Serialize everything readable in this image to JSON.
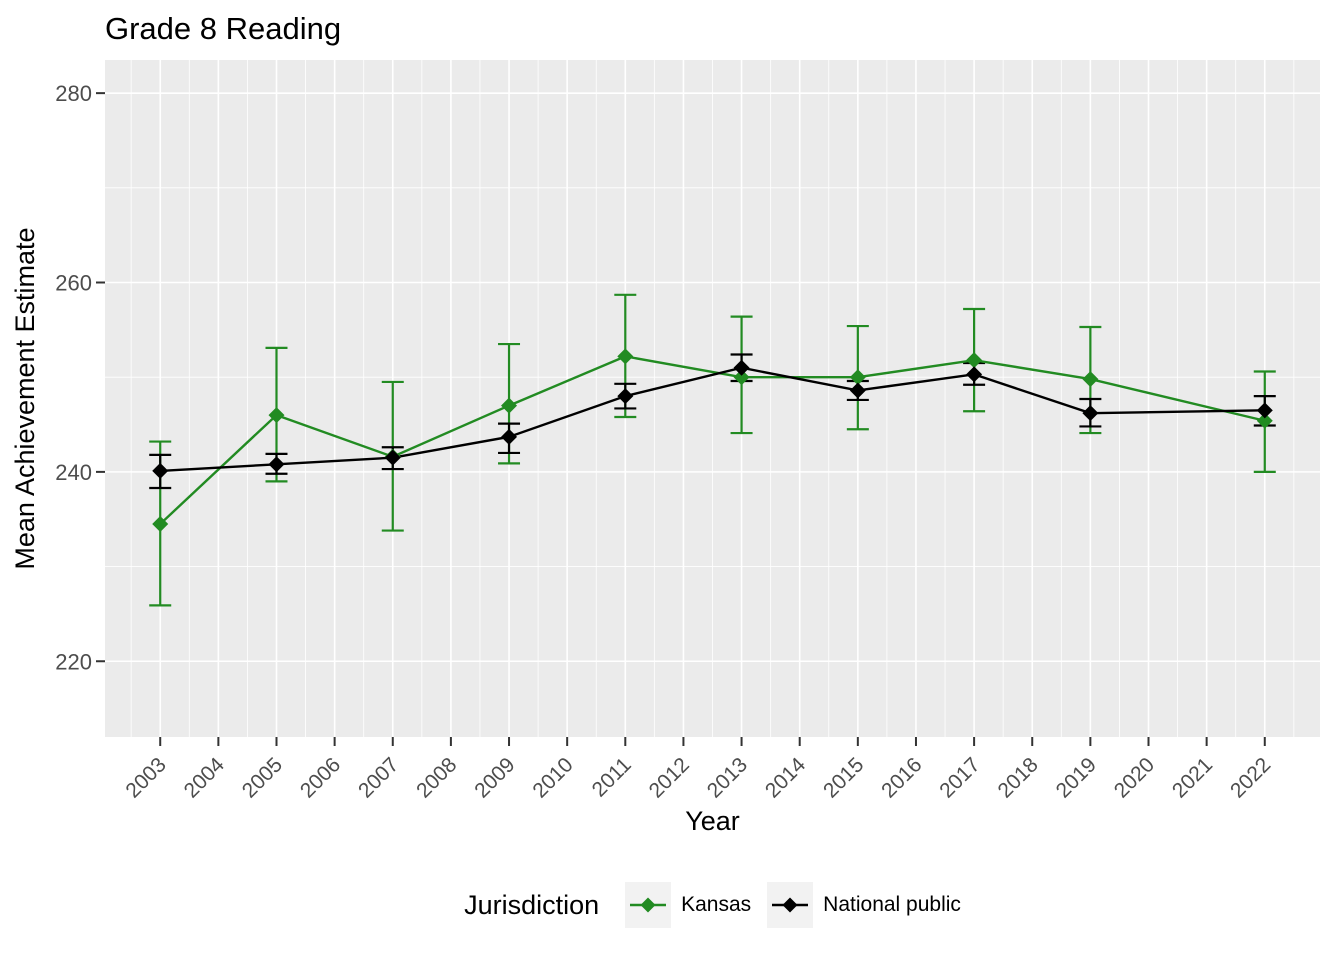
{
  "chart_data": {
    "type": "line",
    "title": "Grade 8 Reading",
    "xlabel": "Year",
    "ylabel": "Mean Achievement Estimate",
    "legend_title": "Jurisdiction",
    "legend_position": "bottom",
    "grid": true,
    "x_ticks": [
      2003,
      2004,
      2005,
      2006,
      2007,
      2008,
      2009,
      2010,
      2011,
      2012,
      2013,
      2014,
      2015,
      2016,
      2017,
      2018,
      2019,
      2020,
      2021,
      2022
    ],
    "y_ticks": [
      220,
      240,
      260,
      280
    ],
    "xlim": [
      2002.05,
      2022.95
    ],
    "ylim": [
      212.0,
      283.5
    ],
    "x": [
      2003,
      2005,
      2007,
      2009,
      2011,
      2013,
      2015,
      2017,
      2019,
      2022
    ],
    "series": [
      {
        "name": "Kansas",
        "color": "#228B22",
        "values": [
          234.5,
          246.0,
          241.6,
          247.0,
          252.2,
          250.0,
          250.0,
          251.8,
          249.8,
          245.4
        ],
        "ci_low": [
          225.9,
          239.0,
          233.8,
          240.9,
          245.8,
          244.1,
          244.5,
          246.4,
          244.1,
          240.0
        ],
        "ci_high": [
          243.2,
          253.1,
          249.5,
          253.5,
          258.7,
          256.4,
          255.4,
          257.2,
          255.3,
          250.6
        ]
      },
      {
        "name": "National public",
        "color": "#000000",
        "values": [
          240.1,
          240.8,
          241.5,
          243.7,
          248.0,
          251.0,
          248.6,
          250.3,
          246.2,
          246.5
        ],
        "ci_low": [
          238.3,
          239.8,
          240.3,
          242.0,
          246.7,
          249.6,
          247.6,
          249.2,
          244.8,
          244.9
        ],
        "ci_high": [
          241.8,
          241.9,
          242.6,
          245.1,
          249.3,
          252.4,
          249.6,
          251.5,
          247.7,
          248.0
        ]
      }
    ],
    "theme": {
      "panel_bg": "#EBEBEB",
      "grid_color": "#FFFFFF",
      "tick_mark_color": "#333333",
      "tick_label_color": "#4D4D4D",
      "text_color": "#000000",
      "legend_key_bg": "#F2F2F2"
    }
  }
}
